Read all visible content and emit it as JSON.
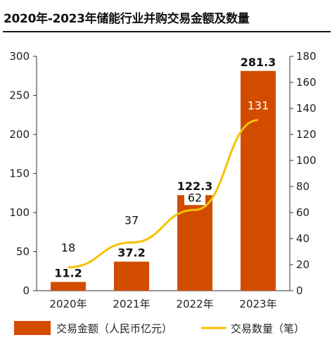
{
  "title": "2020年-2023年储能行业并购交易金额及数量",
  "colors": {
    "bar": "#d24c00",
    "line": "#f5c200",
    "axis": "#333333"
  },
  "chart_data": {
    "type": "bar",
    "title": "2020年-2023年储能行业并购交易金额及数量",
    "categories": [
      "2020年",
      "2021年",
      "2022年",
      "2023年"
    ],
    "series": [
      {
        "name": "交易金额（人民币亿元）",
        "type": "bar",
        "axis": "left",
        "values": [
          11.2,
          37.2,
          122.3,
          281.3
        ]
      },
      {
        "name": "交易数量（笔）",
        "type": "line",
        "axis": "right",
        "values": [
          18,
          37,
          62,
          131
        ]
      }
    ],
    "y_left": {
      "min": 0,
      "max": 300,
      "ticks": [
        0,
        50,
        100,
        150,
        200,
        250,
        300
      ]
    },
    "y_right": {
      "min": 0,
      "max": 180,
      "ticks": [
        0,
        20,
        40,
        60,
        80,
        100,
        120,
        140,
        160,
        180
      ]
    },
    "grid": false,
    "legend": "bottom"
  }
}
